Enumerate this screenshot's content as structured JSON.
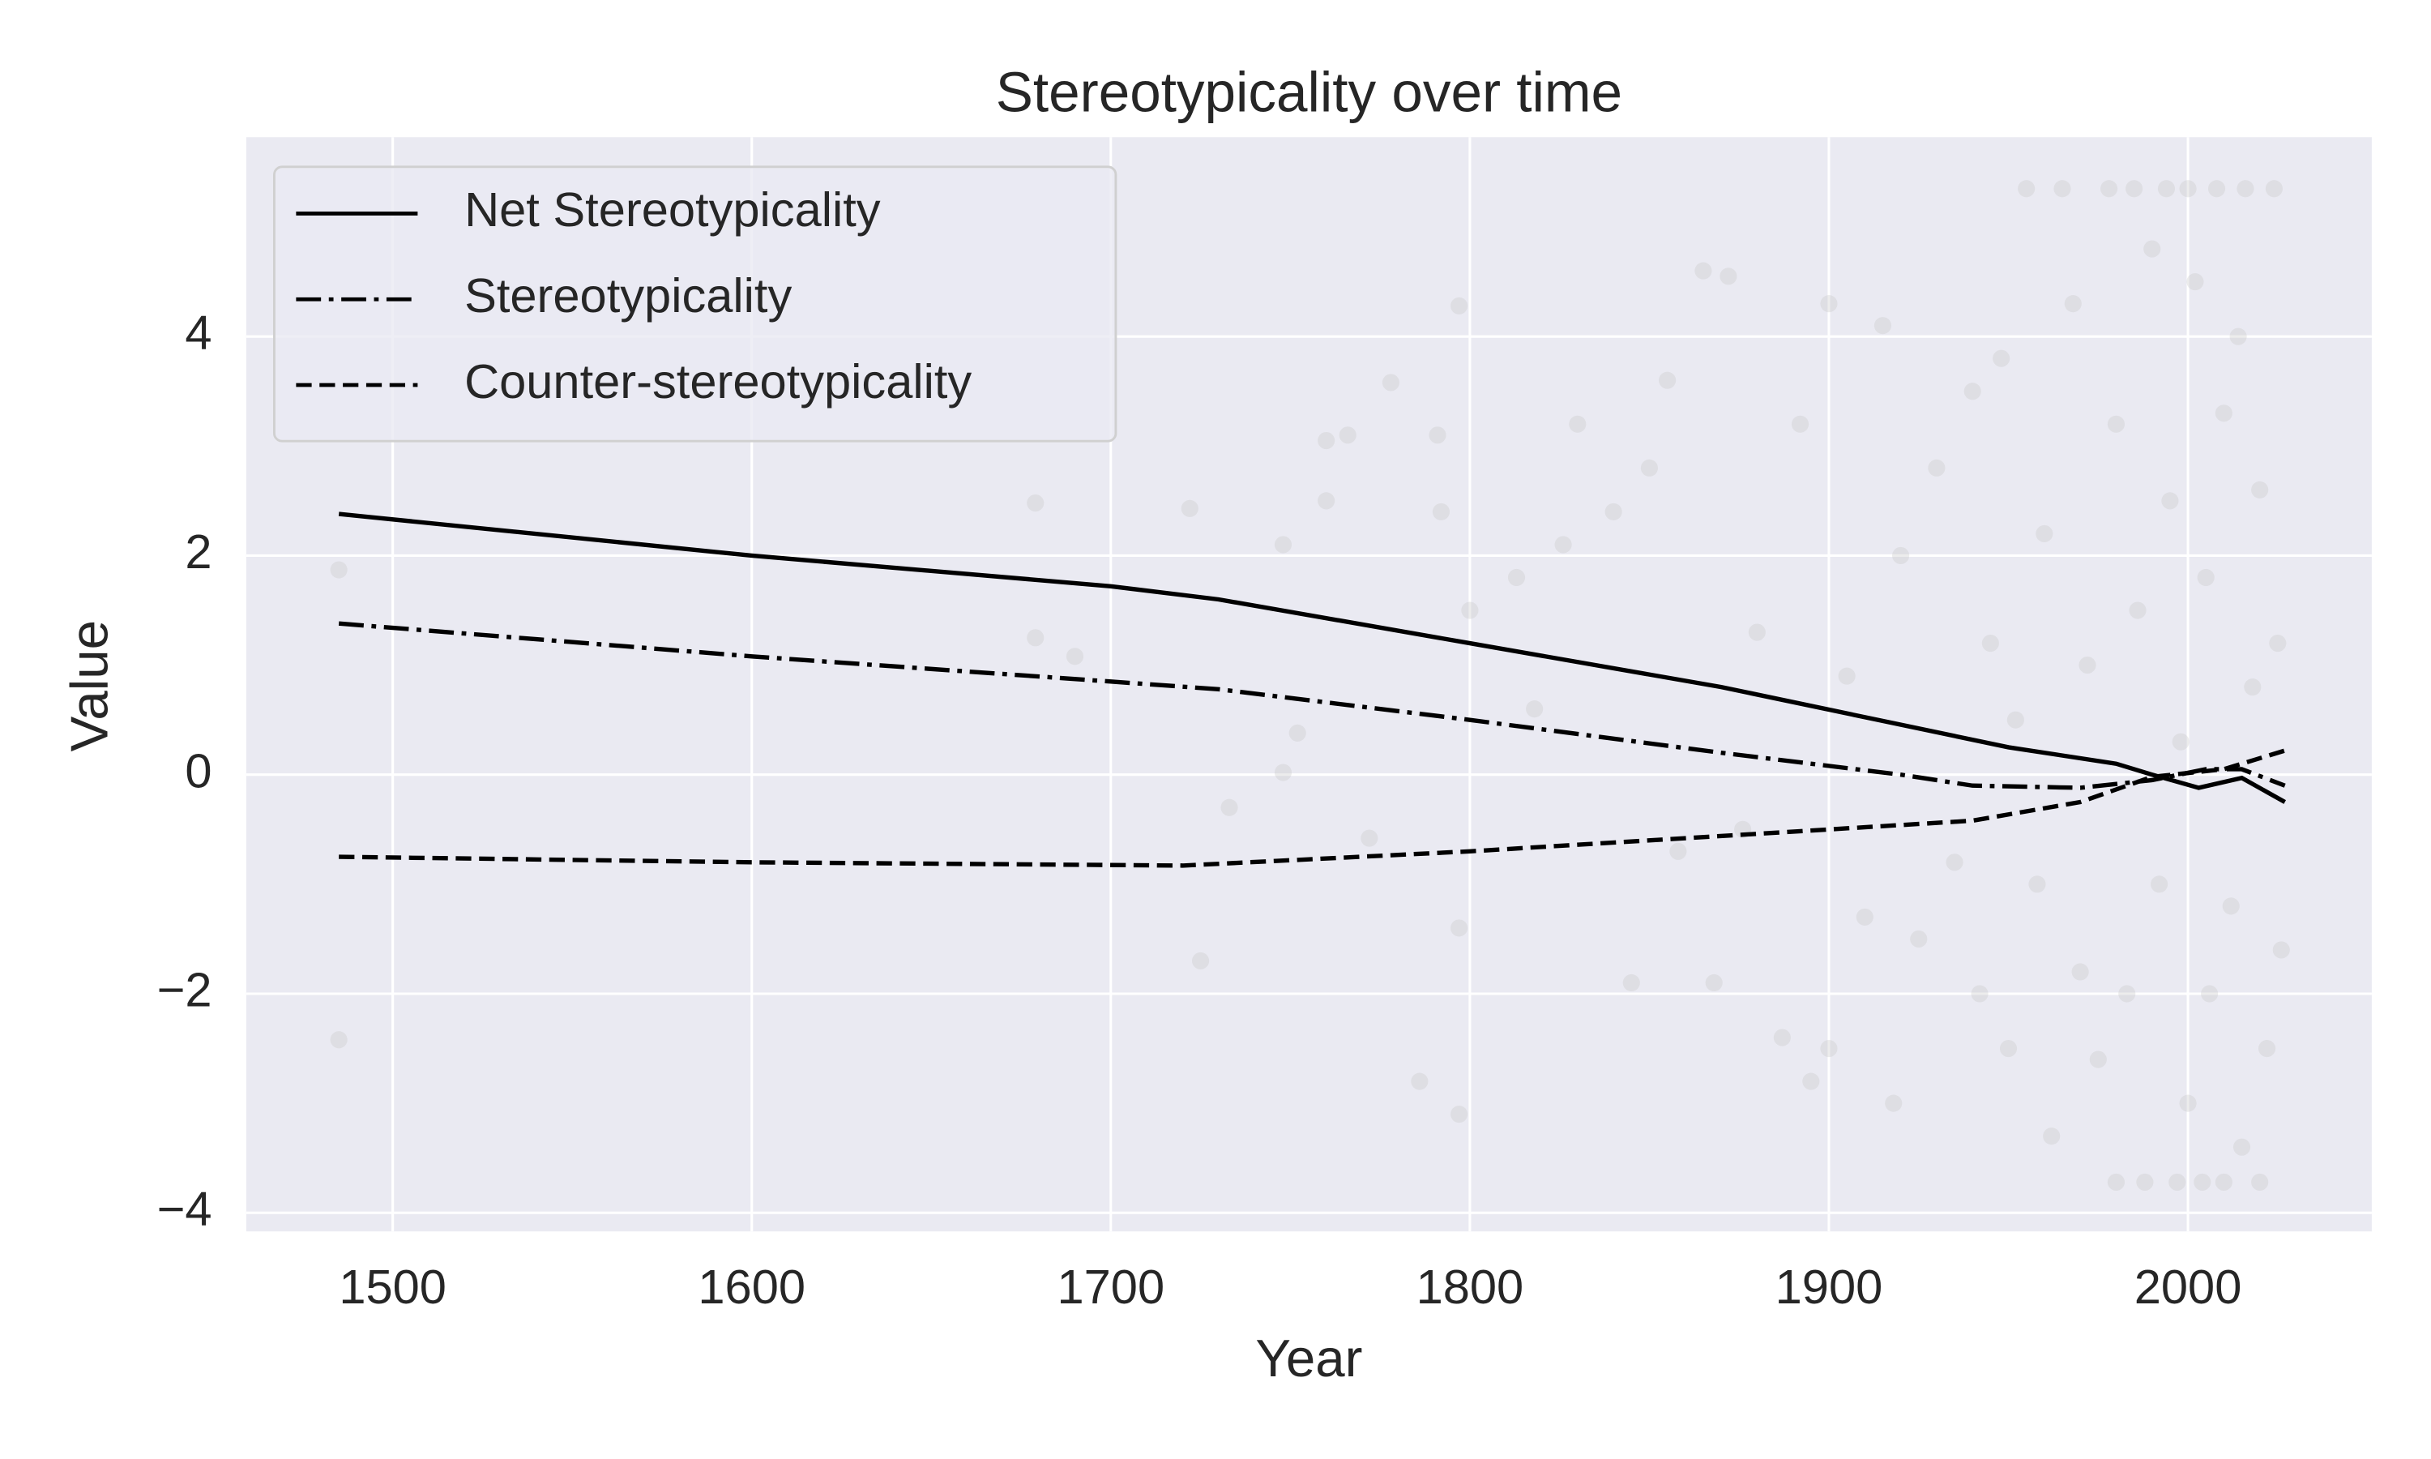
{
  "chart_data": {
    "type": "line",
    "title": "Stereotypicality over time",
    "x_label": "Year",
    "y_label": "Value",
    "xlim": [
      1459.2,
      2051.2
    ],
    "ylim": [
      -4.17,
      5.82
    ],
    "xticks": [
      1500,
      1600,
      1700,
      1800,
      1900,
      2000
    ],
    "yticks": [
      {
        "value": -4,
        "label": "−4"
      },
      {
        "value": -2,
        "label": "−2"
      },
      0,
      2,
      4
    ],
    "grid": true,
    "legend": "upper left",
    "points": {
      "color": "#c8c8c8",
      "alpha": 0.35,
      "x": [
        1485,
        1485,
        1679,
        1679,
        1690,
        1722,
        1725,
        1733,
        1748,
        1748,
        1752,
        1760,
        1760,
        1766,
        1772,
        1778,
        1786,
        1791,
        1792,
        1797,
        1797,
        1797,
        1800,
        1813,
        1818,
        1826,
        1830,
        1840,
        1845,
        1850,
        1855,
        1858,
        1865,
        1868,
        1872,
        1876,
        1880,
        1887,
        1892,
        1895,
        1900,
        1900,
        1905,
        1910,
        1915,
        1918,
        1920,
        1925,
        1930,
        1935,
        1940,
        1942,
        1945,
        1948,
        1950,
        1952,
        1955,
        1958,
        1960,
        1962,
        1965,
        1968,
        1970,
        1972,
        1975,
        1978,
        1980,
        1980,
        1983,
        1985,
        1986,
        1988,
        1990,
        1992,
        1994,
        1995,
        1997,
        1998,
        2000,
        2000,
        2002,
        2004,
        2005,
        2006,
        2008,
        2010,
        2010,
        2012,
        2014,
        2015,
        2016,
        2018,
        2020,
        2020,
        2022,
        2024,
        2025,
        2026
      ],
      "y": [
        1.87,
        -2.42,
        2.48,
        1.25,
        1.08,
        2.43,
        -1.7,
        -0.3,
        2.1,
        0.02,
        0.38,
        2.5,
        3.05,
        3.1,
        -0.58,
        3.58,
        -2.8,
        3.1,
        2.4,
        -3.1,
        4.28,
        -1.4,
        1.5,
        1.8,
        0.6,
        2.1,
        3.2,
        2.4,
        -1.9,
        2.8,
        3.6,
        -0.7,
        4.6,
        -1.9,
        4.55,
        -0.5,
        1.3,
        -2.4,
        3.2,
        -2.8,
        4.3,
        -2.5,
        0.9,
        -1.3,
        4.1,
        -3.0,
        2.0,
        -1.5,
        2.8,
        -0.8,
        3.5,
        -2.0,
        1.2,
        3.8,
        -2.5,
        0.5,
        5.35,
        -1.0,
        2.2,
        -3.3,
        5.35,
        4.3,
        -1.8,
        1.0,
        -2.6,
        5.35,
        3.2,
        -3.72,
        -2.0,
        5.35,
        1.5,
        -3.72,
        4.8,
        -1.0,
        5.35,
        2.5,
        -3.72,
        0.3,
        5.35,
        -3.0,
        4.5,
        -3.72,
        1.8,
        -2.0,
        5.35,
        3.3,
        -3.72,
        -1.2,
        4.0,
        -3.4,
        5.35,
        0.8,
        -3.72,
        2.6,
        -2.5,
        5.35,
        1.2,
        -1.6
      ]
    },
    "series": [
      {
        "name": "Net Stereotypicality",
        "color": "#000000",
        "style": "solid",
        "x": [
          1485,
          1600,
          1700,
          1730,
          1800,
          1870,
          1950,
          1980,
          1990,
          2003,
          2015,
          2027
        ],
        "values": [
          2.38,
          2.0,
          1.72,
          1.6,
          1.2,
          0.8,
          0.25,
          0.1,
          0.0,
          -0.12,
          -0.03,
          -0.25
        ]
      },
      {
        "name": "Stereotypicality",
        "color": "#000000",
        "style": "dashdot",
        "x": [
          1485,
          1600,
          1700,
          1730,
          1800,
          1870,
          1920,
          1940,
          1970,
          1990,
          2005,
          2015,
          2027
        ],
        "values": [
          1.38,
          1.08,
          0.85,
          0.78,
          0.5,
          0.2,
          0.0,
          -0.1,
          -0.12,
          -0.05,
          0.05,
          0.05,
          -0.1
        ]
      },
      {
        "name": "Counter-stereotypicality",
        "color": "#000000",
        "style": "dashed",
        "x": [
          1485,
          1600,
          1720,
          1800,
          1900,
          1940,
          1970,
          1990,
          2010,
          2027
        ],
        "values": [
          -0.75,
          -0.8,
          -0.83,
          -0.7,
          -0.5,
          -0.42,
          -0.25,
          -0.02,
          0.05,
          0.22
        ]
      }
    ]
  }
}
